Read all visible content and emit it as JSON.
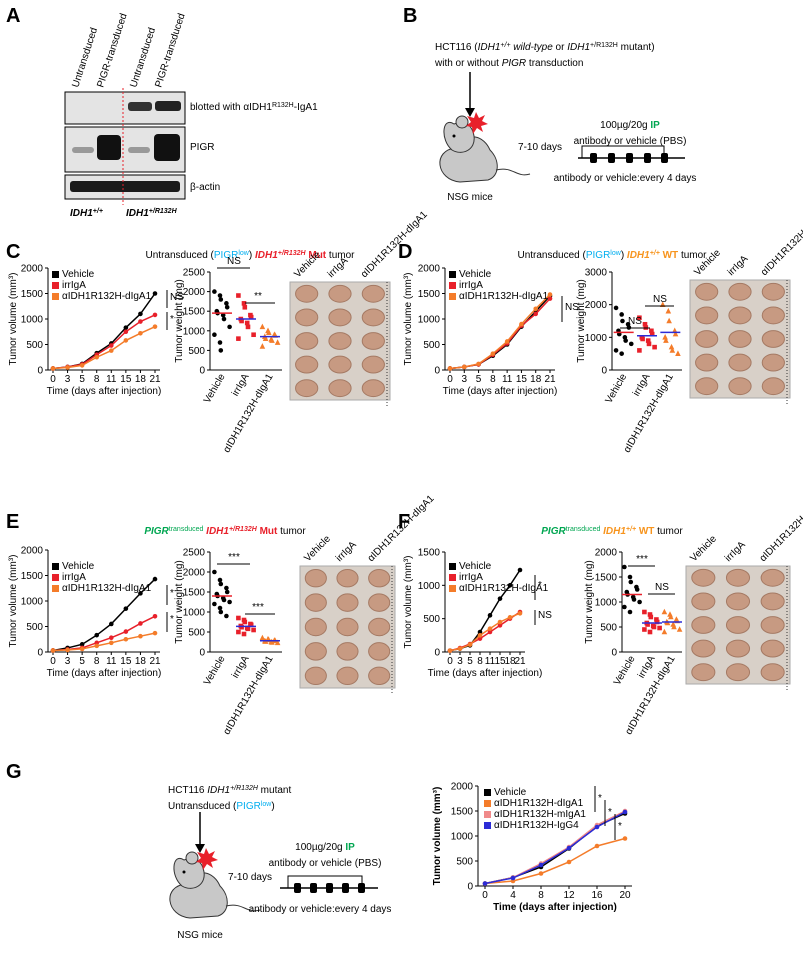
{
  "panels": {
    "A": {
      "letter": "A",
      "lanes": [
        "Untransduced",
        "PIGR-transduced",
        "Untransduced",
        "PIGR-transduced"
      ],
      "blot_label": [
        "blotted with αIDH1",
        "R132H",
        "-IgA1"
      ],
      "rows": [
        "PIGR",
        "β-actin"
      ],
      "genotypes": [
        [
          "IDH1",
          "+/+"
        ],
        [
          "IDH1",
          "+/R132H"
        ]
      ]
    },
    "B": {
      "letter": "B",
      "line1": [
        "HCT116 (",
        "IDH1",
        "+/+",
        " wild-type",
        " or ",
        "IDH1",
        "+/R132H",
        " mutant)"
      ],
      "line2": [
        "with or without ",
        "PIGR",
        " transduction"
      ],
      "dose": [
        "100µg/20g ",
        "IP"
      ],
      "vehicle": "antibody or vehicle (PBS)",
      "delay": "7-10 days",
      "schedule": "antibody or vehicle:every 4 days",
      "mouse": "NSG mice"
    },
    "C": {
      "letter": "C",
      "title": [
        "Untransduced (",
        "PIGR",
        "low",
        ") ",
        "IDH1",
        "+/R132H",
        " Mut",
        " tumor"
      ]
    },
    "D": {
      "letter": "D",
      "title": [
        "Untransduced (",
        "PIGR",
        "low",
        ") ",
        "IDH1",
        "+/+",
        " WT",
        " tumor"
      ]
    },
    "E": {
      "letter": "E",
      "title": [
        "PIGR",
        "transduced",
        " IDH1",
        "+/R132H",
        " Mut",
        " tumor"
      ]
    },
    "F": {
      "letter": "F",
      "title": [
        "PIGR",
        "transduced",
        " IDH1",
        "+/+",
        " WT",
        " tumor"
      ]
    },
    "G": {
      "letter": "G",
      "line1": [
        "HCT116 ",
        "IDH1",
        "+/R132H",
        " mutant"
      ],
      "line2": [
        "Untransduced (",
        "PIGR",
        "low",
        ")"
      ],
      "dose": [
        "100µg/20g ",
        "IP"
      ],
      "vehicle": "antibody or vehicle (PBS)",
      "delay": "7-10 days",
      "schedule": "antibody or vehicle:every 4 days",
      "mouse": "NSG mice"
    }
  },
  "chart_data": [
    {
      "type": "line",
      "ylabel": "Tumor volume (mm³)",
      "xlabel": "Time (days after injection)",
      "categories": [
        0,
        3,
        5,
        8,
        11,
        15,
        18,
        21
      ],
      "ylim": [
        0,
        2000
      ],
      "yticks": [
        0,
        500,
        1000,
        1500,
        2000
      ],
      "series": [
        {
          "name": "Vehicle",
          "color": "#000000",
          "values": [
            30,
            60,
            120,
            330,
            520,
            830,
            1100,
            1500
          ]
        },
        {
          "name": "irrIgA",
          "color": "#e8202a",
          "values": [
            30,
            60,
            110,
            300,
            480,
            750,
            950,
            1080
          ]
        },
        {
          "name": "αIDH1R132H-dIgA1",
          "color": "#f47c2a",
          "values": [
            30,
            50,
            90,
            250,
            380,
            580,
            720,
            850
          ]
        }
      ],
      "annotations": [
        "NS",
        "*"
      ]
    },
    {
      "type": "strip",
      "ylabel": "Tumor weight (mg)",
      "categories": [
        "Vehicle",
        "irrIgA",
        "αIDH1R132H-dIgA1"
      ],
      "colors": [
        "#000000",
        "#e8202a",
        "#f47c2a"
      ],
      "markers": [
        "circle",
        "square",
        "triangle"
      ],
      "points": [
        [
          2000,
          1900,
          1800,
          1700,
          1600,
          1500,
          1450,
          1400,
          1300,
          1100,
          900,
          700,
          500
        ],
        [
          1900,
          1700,
          1600,
          1400,
          1350,
          1300,
          1250,
          1200,
          1100,
          900,
          800
        ],
        [
          1100,
          1000,
          950,
          900,
          880,
          850,
          800,
          780,
          750,
          700,
          600
        ]
      ],
      "means": [
        1450,
        1300,
        850
      ],
      "ylim": [
        0,
        2500
      ],
      "yticks": [
        0,
        500,
        1000,
        1500,
        2000,
        2500
      ],
      "annotations": [
        "NS",
        "**"
      ]
    },
    {
      "type": "line",
      "ylabel": "Tumor volume (mm³)",
      "xlabel": "Time (days after injection)",
      "categories": [
        0,
        3,
        5,
        8,
        11,
        15,
        18,
        21
      ],
      "ylim": [
        0,
        2000
      ],
      "yticks": [
        0,
        500,
        1000,
        1500,
        2000
      ],
      "series": [
        {
          "name": "Vehicle",
          "color": "#000000",
          "values": [
            30,
            60,
            110,
            280,
            500,
            850,
            1150,
            1450
          ]
        },
        {
          "name": "irrIgA",
          "color": "#e8202a",
          "values": [
            30,
            60,
            110,
            300,
            520,
            870,
            1100,
            1400
          ]
        },
        {
          "name": "αIDH1R132H-dIgA1",
          "color": "#f47c2a",
          "values": [
            30,
            60,
            120,
            320,
            560,
            900,
            1200,
            1480
          ]
        }
      ],
      "annotations": [
        "NS"
      ]
    },
    {
      "type": "strip",
      "ylabel": "Tumor weight (mg)",
      "categories": [
        "Vehicle",
        "irrIgA",
        "αIDH1R132H-dIgA1"
      ],
      "colors": [
        "#000000",
        "#e8202a",
        "#f47c2a"
      ],
      "markers": [
        "circle",
        "square",
        "triangle"
      ],
      "points": [
        [
          1900,
          1700,
          1500,
          1400,
          1300,
          1200,
          1100,
          1000,
          900,
          800,
          600,
          500
        ],
        [
          1600,
          1400,
          1300,
          1200,
          1100,
          1000,
          950,
          900,
          800,
          700,
          600
        ],
        [
          2000,
          1800,
          1500,
          1200,
          1100,
          1000,
          900,
          700,
          600,
          500
        ]
      ],
      "means": [
        1150,
        1050,
        1150
      ],
      "ylim": [
        0,
        3000
      ],
      "yticks": [
        0,
        1000,
        2000,
        3000
      ],
      "annotations": [
        "NS",
        "NS"
      ]
    },
    {
      "type": "line",
      "ylabel": "Tumor volume (mm³)",
      "xlabel": "Time (days after injection)",
      "categories": [
        0,
        3,
        5,
        8,
        11,
        15,
        18,
        21
      ],
      "ylim": [
        0,
        2000
      ],
      "yticks": [
        0,
        500,
        1000,
        1500,
        2000
      ],
      "series": [
        {
          "name": "Vehicle",
          "color": "#000000",
          "values": [
            30,
            80,
            150,
            330,
            550,
            850,
            1150,
            1430
          ]
        },
        {
          "name": "irrIgA",
          "color": "#e8202a",
          "values": [
            30,
            50,
            80,
            180,
            280,
            400,
            560,
            700
          ]
        },
        {
          "name": "αIDH1R132H-dIgA1",
          "color": "#f47c2a",
          "values": [
            30,
            40,
            60,
            120,
            180,
            250,
            310,
            370
          ]
        }
      ],
      "annotations": [
        "*",
        "*"
      ]
    },
    {
      "type": "strip",
      "ylabel": "Tumor weight (mg)",
      "categories": [
        "Vehicle",
        "irrIgA",
        "αIDH1R132H-dIgA1"
      ],
      "colors": [
        "#000000",
        "#e8202a",
        "#f47c2a"
      ],
      "markers": [
        "circle",
        "square",
        "triangle"
      ],
      "points": [
        [
          2000,
          1800,
          1700,
          1600,
          1500,
          1450,
          1400,
          1350,
          1300,
          1250,
          1200,
          1100,
          1000,
          900
        ],
        [
          850,
          800,
          750,
          700,
          680,
          650,
          620,
          600,
          580,
          550,
          500,
          450
        ],
        [
          350,
          320,
          300,
          290,
          280,
          270,
          260,
          250,
          240,
          230
        ]
      ],
      "means": [
        1400,
        640,
        280
      ],
      "ylim": [
        0,
        2500
      ],
      "yticks": [
        0,
        500,
        1000,
        1500,
        2000,
        2500
      ],
      "annotations": [
        "***",
        "***"
      ]
    },
    {
      "type": "line",
      "ylabel": "Tumor volume (mm³)",
      "xlabel": "Time (days after injection)",
      "categories": [
        0,
        3,
        5,
        8,
        11,
        15,
        18,
        21
      ],
      "ylim": [
        0,
        1500
      ],
      "yticks": [
        0,
        500,
        1000,
        1500
      ],
      "series": [
        {
          "name": "Vehicle",
          "color": "#000000",
          "values": [
            20,
            50,
            100,
            300,
            550,
            800,
            1000,
            1230
          ]
        },
        {
          "name": "irrIgA",
          "color": "#e8202a",
          "values": [
            20,
            60,
            120,
            200,
            300,
            400,
            500,
            600
          ]
        },
        {
          "name": "αIDH1R132H-dIgA1",
          "color": "#f47c2a",
          "values": [
            20,
            50,
            110,
            250,
            350,
            450,
            520,
            580
          ]
        }
      ],
      "annotations": [
        "*",
        "NS"
      ]
    },
    {
      "type": "strip",
      "ylabel": "Tumor weight (mg)",
      "categories": [
        "Vehicle",
        "irrIgA",
        "αIDH1R132H-dIgA1"
      ],
      "colors": [
        "#000000",
        "#e8202a",
        "#f47c2a"
      ],
      "markers": [
        "circle",
        "square",
        "triangle"
      ],
      "points": [
        [
          1700,
          1500,
          1400,
          1300,
          1250,
          1200,
          1150,
          1100,
          1050,
          1000,
          900,
          800
        ],
        [
          800,
          750,
          700,
          650,
          600,
          580,
          550,
          520,
          500,
          480,
          450,
          400
        ],
        [
          800,
          750,
          700,
          650,
          620,
          600,
          580,
          550,
          500,
          450,
          400
        ]
      ],
      "means": [
        1150,
        580,
        600
      ],
      "ylim": [
        0,
        2000
      ],
      "yticks": [
        0,
        500,
        1000,
        1500,
        2000
      ],
      "annotations": [
        "***",
        "NS"
      ]
    },
    {
      "type": "line",
      "ylabel": "Tumor volume (mm³)",
      "xlabel": "Time (days after injection)",
      "x": [
        0,
        4,
        8,
        12,
        16,
        20
      ],
      "xlim": [
        -1,
        21
      ],
      "xticks": [
        0,
        4,
        8,
        12,
        16,
        20
      ],
      "ylim": [
        0,
        2000
      ],
      "yticks": [
        0,
        500,
        1000,
        1500,
        2000
      ],
      "series": [
        {
          "name": "Vehicle",
          "color": "#000000",
          "values": [
            50,
            170,
            380,
            750,
            1200,
            1450
          ]
        },
        {
          "name": "αIDH1R132H-dIgA1",
          "color": "#f47c2a",
          "values": [
            50,
            100,
            250,
            480,
            800,
            950
          ]
        },
        {
          "name": "αIDH1R132H-mIgA1",
          "color": "#f08a8a",
          "values": [
            50,
            170,
            450,
            780,
            1220,
            1500
          ]
        },
        {
          "name": "αIDH1R132H-IgG4",
          "color": "#2b2bd6",
          "values": [
            50,
            160,
            420,
            760,
            1180,
            1480
          ]
        }
      ],
      "annotations": [
        "*",
        "*",
        "*"
      ]
    }
  ]
}
